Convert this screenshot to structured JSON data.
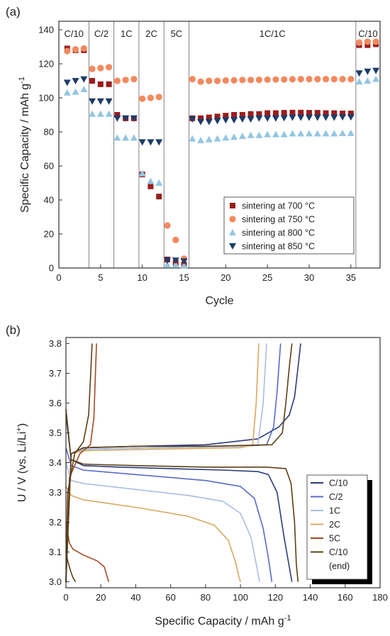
{
  "chart_data": [
    {
      "type": "scatter",
      "panel_label": "(a)",
      "xlabel": "Cycle",
      "ylabel": "Specific Capacity / mAh g",
      "ylabel_sup": "-1",
      "xlim": [
        0,
        38.5
      ],
      "ylim": [
        0,
        145
      ],
      "xticks": [
        0,
        5,
        10,
        15,
        20,
        25,
        30,
        35
      ],
      "yticks": [
        0,
        20,
        40,
        60,
        80,
        100,
        120,
        140
      ],
      "grid": false,
      "legend_position": "lower-right",
      "regions": [
        {
          "label": "C/10",
          "from": 0,
          "to": 3.6
        },
        {
          "label": "C/2",
          "from": 3.6,
          "to": 6.6
        },
        {
          "label": "1C",
          "from": 6.6,
          "to": 9.6
        },
        {
          "label": "2C",
          "from": 9.6,
          "to": 12.6
        },
        {
          "label": "5C",
          "from": 12.6,
          "to": 15.6
        },
        {
          "label": "1C/1C",
          "from": 15.6,
          "to": 35.6
        },
        {
          "label": "C/10",
          "from": 35.6,
          "to": 38.5
        }
      ],
      "series": [
        {
          "name": "sintering at 700 °C",
          "marker": "square",
          "color": "#9b1c1c",
          "x": [
            1,
            2,
            3,
            4,
            5,
            6,
            7,
            8,
            9,
            10,
            11,
            12,
            13,
            14,
            15,
            16,
            17,
            18,
            19,
            20,
            21,
            22,
            23,
            24,
            25,
            26,
            27,
            28,
            29,
            30,
            31,
            32,
            33,
            34,
            35,
            36,
            37,
            38
          ],
          "y": [
            129,
            128,
            128,
            110,
            108,
            108,
            90,
            88,
            88,
            55,
            48,
            42,
            5,
            3,
            2,
            88,
            88,
            88.5,
            89,
            89.5,
            90,
            90,
            90.5,
            90.5,
            91,
            91,
            91.2,
            91.3,
            91.3,
            91.2,
            91.2,
            91,
            91,
            90.8,
            90.8,
            131,
            131,
            131.5
          ]
        },
        {
          "name": "sintering at 750 °C",
          "marker": "circle",
          "color": "#f4895f",
          "x": [
            1,
            2,
            3,
            4,
            5,
            6,
            7,
            8,
            9,
            10,
            11,
            12,
            13,
            14,
            15,
            16,
            17,
            18,
            19,
            20,
            21,
            22,
            23,
            24,
            25,
            26,
            27,
            28,
            29,
            30,
            31,
            32,
            33,
            34,
            35,
            36,
            37,
            38
          ],
          "y": [
            127.5,
            128.5,
            129,
            117,
            117.5,
            118,
            110,
            110.5,
            111,
            99.5,
            100,
            100.5,
            25,
            16.5,
            5.5,
            111,
            109.5,
            110,
            110,
            110.2,
            110.3,
            110.5,
            110.5,
            110.6,
            110.7,
            110.8,
            110.8,
            110.9,
            111,
            111,
            111,
            111,
            111,
            111,
            111,
            132.5,
            133,
            133
          ]
        },
        {
          "name": "sintering at 800 °C",
          "marker": "triangle-up",
          "color": "#94c6e2",
          "x": [
            1,
            2,
            3,
            4,
            5,
            6,
            7,
            8,
            9,
            10,
            11,
            12,
            13,
            14,
            15,
            16,
            17,
            18,
            19,
            20,
            21,
            22,
            23,
            24,
            25,
            26,
            27,
            28,
            29,
            30,
            31,
            32,
            33,
            34,
            35,
            36,
            37,
            38
          ],
          "y": [
            103,
            103.5,
            105,
            90.5,
            90.5,
            90.5,
            76.5,
            76.5,
            76.5,
            55.5,
            51,
            50,
            2,
            2,
            1.5,
            76,
            75,
            75.5,
            76,
            76.5,
            77,
            77.5,
            78,
            78,
            78.5,
            78.5,
            78.5,
            79,
            79,
            79,
            79,
            79,
            79,
            79.2,
            79.2,
            109.5,
            110,
            111
          ]
        },
        {
          "name": "sintering at 850 °C",
          "marker": "triangle-down",
          "color": "#1c3d6b",
          "x": [
            1,
            2,
            3,
            4,
            5,
            6,
            7,
            8,
            9,
            10,
            11,
            12,
            13,
            14,
            15,
            16,
            17,
            18,
            19,
            20,
            21,
            22,
            23,
            24,
            25,
            26,
            27,
            28,
            29,
            30,
            31,
            32,
            33,
            34,
            35,
            36,
            37,
            38
          ],
          "y": [
            109,
            110,
            111,
            98,
            98,
            98,
            88,
            88,
            88,
            74,
            74,
            74,
            4.5,
            4.5,
            4,
            87.5,
            86,
            86,
            86.5,
            87,
            87,
            87.5,
            87.5,
            88,
            88,
            88,
            88.2,
            88.5,
            88.5,
            88.5,
            88.5,
            88.5,
            88.5,
            88.7,
            88.7,
            114.5,
            115.5,
            116
          ]
        }
      ]
    },
    {
      "type": "line",
      "panel_label": "(b)",
      "xlabel": "Specific Capacity / mAh g",
      "xlabel_sup": "-1",
      "ylabel": "U / V (vs. Li/Li",
      "ylabel_sup": "+",
      "ylabel_end": ")",
      "xlim": [
        0,
        180
      ],
      "ylim": [
        2.98,
        3.82
      ],
      "xticks": [
        0,
        20,
        40,
        60,
        80,
        100,
        120,
        140,
        160,
        180
      ],
      "yticks": [
        3.0,
        3.1,
        3.2,
        3.3,
        3.4,
        3.5,
        3.6,
        3.7,
        3.8
      ],
      "grid": false,
      "legend_position": "lower-right",
      "legend": [
        {
          "label": "C/10",
          "color": "#2a3b78"
        },
        {
          "label": "C/2",
          "color": "#5a6ac8"
        },
        {
          "label": "1C",
          "color": "#a9bde3"
        },
        {
          "label": "2C",
          "color": "#d9a860"
        },
        {
          "label": "5C",
          "color": "#a24a22"
        },
        {
          "label": "C/10",
          "color": "#5c4015"
        },
        {
          "label": "(end)",
          "color": null
        }
      ],
      "series": [
        {
          "color": "#2a3b78",
          "kind": "discharge",
          "x": [
            0,
            3,
            10,
            30,
            60,
            90,
            110,
            116,
            121,
            125,
            128,
            129.5
          ],
          "y": [
            3.56,
            3.41,
            3.39,
            3.385,
            3.38,
            3.375,
            3.37,
            3.36,
            3.3,
            3.15,
            3.05,
            3.0
          ]
        },
        {
          "color": "#2a3b78",
          "kind": "charge",
          "x": [
            0,
            3,
            10,
            40,
            80,
            110,
            122,
            128,
            131,
            133,
            134.5
          ],
          "y": [
            3.0,
            3.43,
            3.45,
            3.455,
            3.46,
            3.48,
            3.52,
            3.56,
            3.62,
            3.72,
            3.8
          ]
        },
        {
          "color": "#5a6ac8",
          "kind": "discharge",
          "x": [
            0,
            3,
            10,
            40,
            80,
            100,
            108,
            113,
            116,
            118
          ],
          "y": [
            3.45,
            3.39,
            3.375,
            3.36,
            3.34,
            3.32,
            3.28,
            3.18,
            3.08,
            3.0
          ]
        },
        {
          "color": "#5a6ac8",
          "kind": "charge",
          "x": [
            0,
            3,
            10,
            50,
            100,
            115,
            119,
            121,
            123
          ],
          "y": [
            3.0,
            3.43,
            3.445,
            3.45,
            3.455,
            3.46,
            3.52,
            3.64,
            3.8
          ]
        },
        {
          "color": "#a9bde3",
          "kind": "discharge",
          "x": [
            0,
            3,
            10,
            40,
            70,
            90,
            100,
            106,
            109,
            111
          ],
          "y": [
            3.4,
            3.34,
            3.33,
            3.31,
            3.29,
            3.27,
            3.23,
            3.15,
            3.06,
            3.0
          ]
        },
        {
          "color": "#a9bde3",
          "kind": "charge",
          "x": [
            0,
            3,
            10,
            50,
            100,
            110,
            113,
            115
          ],
          "y": [
            3.0,
            3.43,
            3.445,
            3.45,
            3.455,
            3.46,
            3.6,
            3.8
          ]
        },
        {
          "color": "#d9a860",
          "kind": "discharge",
          "x": [
            0,
            3,
            10,
            40,
            70,
            85,
            93,
            97,
            99,
            100
          ],
          "y": [
            3.32,
            3.29,
            3.275,
            3.25,
            3.22,
            3.19,
            3.14,
            3.07,
            3.02,
            3.0
          ]
        },
        {
          "color": "#d9a860",
          "kind": "charge",
          "x": [
            0,
            3,
            10,
            50,
            100,
            107,
            109,
            110.5
          ],
          "y": [
            3.0,
            3.43,
            3.44,
            3.445,
            3.45,
            3.46,
            3.6,
            3.8
          ]
        },
        {
          "color": "#a24a22",
          "kind": "discharge",
          "x": [
            0,
            2,
            4,
            10,
            18,
            22,
            23.5,
            24.5
          ],
          "y": [
            3.2,
            3.13,
            3.11,
            3.09,
            3.07,
            3.05,
            3.02,
            3.0
          ]
        },
        {
          "color": "#a24a22",
          "kind": "charge",
          "x": [
            0,
            2,
            8,
            14,
            16,
            16.8,
            17.5
          ],
          "y": [
            3.0,
            3.35,
            3.43,
            3.46,
            3.55,
            3.68,
            3.8
          ]
        },
        {
          "color": "#5c4015",
          "kind": "discharge",
          "x": [
            0,
            3,
            10,
            40,
            80,
            115,
            126,
            129,
            131,
            132,
            133
          ],
          "y": [
            3.58,
            3.41,
            3.395,
            3.39,
            3.385,
            3.385,
            3.38,
            3.33,
            3.2,
            3.06,
            3.0
          ]
        },
        {
          "color": "#5c4015",
          "kind": "charge",
          "x": [
            0,
            3,
            10,
            40,
            80,
            118,
            124,
            126,
            128,
            129.5
          ],
          "y": [
            3.0,
            3.43,
            3.45,
            3.455,
            3.455,
            3.46,
            3.5,
            3.6,
            3.72,
            3.8
          ]
        },
        {
          "color": "#5c4015",
          "kind": "charge",
          "x": [
            0,
            1,
            5,
            10,
            13,
            14,
            15
          ],
          "y": [
            3.0,
            3.3,
            3.43,
            3.47,
            3.56,
            3.68,
            3.8
          ]
        },
        {
          "color": "#5c4015",
          "kind": "discharge",
          "x": [
            0,
            1,
            2,
            3,
            4,
            5.5
          ],
          "y": [
            3.1,
            3.07,
            3.05,
            3.03,
            3.015,
            3.0
          ]
        }
      ]
    }
  ]
}
